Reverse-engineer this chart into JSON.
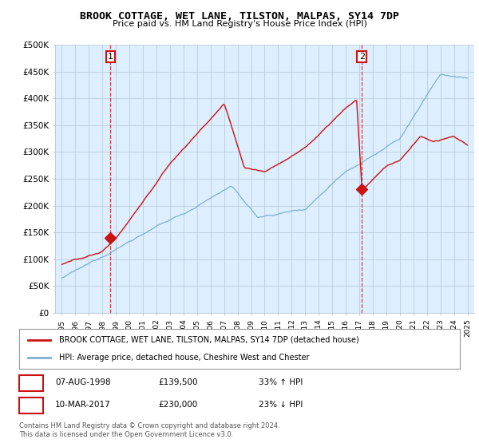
{
  "title": "BROOK COTTAGE, WET LANE, TILSTON, MALPAS, SY14 7DP",
  "subtitle": "Price paid vs. HM Land Registry's House Price Index (HPI)",
  "hpi_color": "#7bafd4",
  "price_color": "#cc1111",
  "sale1_date": 1998.6,
  "sale1_price": 139500,
  "sale2_date": 2017.19,
  "sale2_price": 230000,
  "legend_label1": "BROOK COTTAGE, WET LANE, TILSTON, MALPAS, SY14 7DP (detached house)",
  "legend_label2": "HPI: Average price, detached house, Cheshire West and Chester",
  "table_row1": [
    "1",
    "07-AUG-1998",
    "£139,500",
    "33% ↑ HPI"
  ],
  "table_row2": [
    "2",
    "10-MAR-2017",
    "£230,000",
    "23% ↓ HPI"
  ],
  "footer": "Contains HM Land Registry data © Crown copyright and database right 2024.\nThis data is licensed under the Open Government Licence v3.0.",
  "background_color": "#ffffff",
  "chart_bg_color": "#ddeeff",
  "grid_color": "#bbccdd",
  "xlim_start": 1994.5,
  "xlim_end": 2025.5,
  "ylim": [
    0,
    500000
  ],
  "yticks": [
    0,
    50000,
    100000,
    150000,
    200000,
    250000,
    300000,
    350000,
    400000,
    450000,
    500000
  ],
  "ytick_labels": [
    "£0",
    "£50K",
    "£100K",
    "£150K",
    "£200K",
    "£250K",
    "£300K",
    "£350K",
    "£400K",
    "£450K",
    "£500K"
  ]
}
